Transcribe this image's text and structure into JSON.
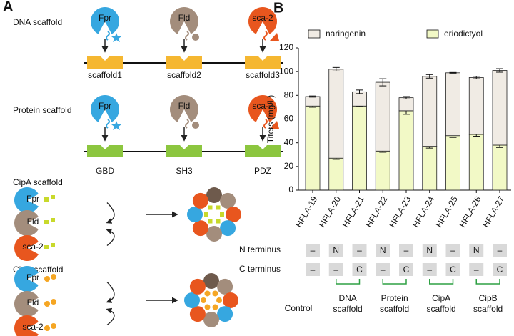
{
  "panel_a": {
    "label": "A",
    "rows": [
      {
        "title": "DNA scaffold",
        "enzymes": [
          "Fpr",
          "Fld",
          "sca-2"
        ],
        "scaffolds": [
          "scaffold1",
          "scaffold2",
          "scaffold3"
        ]
      },
      {
        "title": "Protein scaffold",
        "enzymes": [
          "Fpr",
          "Fld",
          "sca-2"
        ],
        "scaffolds": [
          "GBD",
          "SH3",
          "PDZ"
        ]
      },
      {
        "title": "CipA scaffold",
        "enzymes": [
          "Fpr",
          "Fld",
          "sca-2"
        ]
      },
      {
        "title": "CipB scaffold",
        "enzymes": [
          "Fpr",
          "Fld",
          "sca-2"
        ]
      }
    ]
  },
  "panel_b": {
    "label": "B"
  },
  "chart_data": {
    "type": "stacked_bar",
    "y_label": "Titers (mg/L)",
    "categories": [
      "HFLA-19",
      "HFLA-20",
      "HFLA-21",
      "HFLA-22",
      "HFLA-23",
      "HFLA-24",
      "HFLA-25",
      "HFLA-26",
      "HFLA-27"
    ],
    "series": [
      {
        "name": "naringenin",
        "color": "#f0ebe4",
        "values": [
          8,
          75,
          12,
          58,
          11,
          59,
          53,
          48,
          63
        ],
        "errors": [
          0.5,
          1.5,
          1.5,
          3,
          1,
          1.5,
          0.3,
          1,
          1.5
        ]
      },
      {
        "name": "eriodictyol",
        "color": "#f2f9c6",
        "values": [
          71,
          27,
          71,
          33,
          67,
          37,
          46,
          47,
          38
        ],
        "errors": [
          1,
          1,
          0.5,
          1,
          3,
          1.5,
          1.5,
          1.5,
          2
        ]
      }
    ],
    "ylim": [
      0,
      120
    ],
    "yticks": [
      0,
      20,
      40,
      60,
      80,
      100,
      120
    ],
    "legend": "top"
  },
  "constructs": {
    "rows": [
      {
        "label": "N terminus",
        "cells": [
          "–",
          "N",
          "–",
          "N",
          "–",
          "N",
          "–",
          "N",
          "–"
        ]
      },
      {
        "label": "C terminus",
        "cells": [
          "–",
          "–",
          "C",
          "–",
          "C",
          "–",
          "C",
          "–",
          "C"
        ]
      }
    ],
    "groups": [
      [
        "Control"
      ],
      [
        "DNA",
        "scaffold"
      ],
      [
        "Protein",
        "scaffold"
      ],
      [
        "CipA",
        "scaffold"
      ],
      [
        "CipB",
        "scaffold"
      ]
    ]
  }
}
